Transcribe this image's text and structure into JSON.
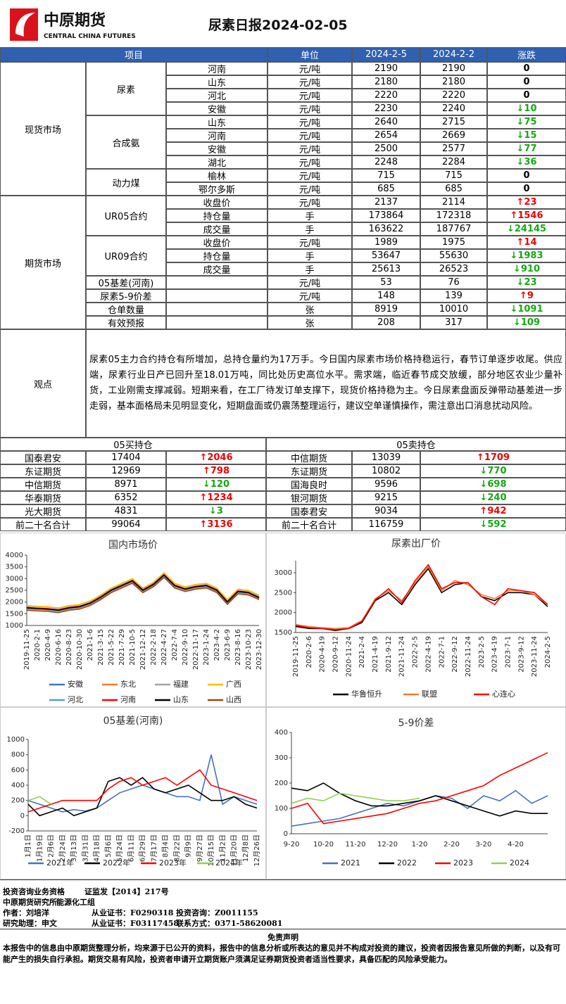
{
  "header": {
    "logo_cn": "中原期货",
    "logo_en": "CENTRAL CHINA FUTURES",
    "title": "尿素日报2024-02-05"
  },
  "table": {
    "columns": [
      "项目",
      "单位",
      "2024-2-5",
      "2024-2-2",
      "涨跌"
    ],
    "sections": [
      {
        "name": "现货市场",
        "groups": [
          {
            "name": "尿素",
            "rows": [
              [
                "河南",
                "元/吨",
                2190,
                2190,
                "0"
              ],
              [
                "山东",
                "元/吨",
                2180,
                2180,
                "0"
              ],
              [
                "河北",
                "元/吨",
                2220,
                2220,
                "0"
              ],
              [
                "安徽",
                "元/吨",
                2230,
                2240,
                "↓10"
              ]
            ]
          },
          {
            "name": "合成氨",
            "rows": [
              [
                "山东",
                "元/吨",
                2640,
                2715,
                "↓75"
              ],
              [
                "河南",
                "元/吨",
                2654,
                2669,
                "↓15"
              ],
              [
                "安徽",
                "元/吨",
                2500,
                2577,
                "↓77"
              ],
              [
                "湖北",
                "元/吨",
                2248,
                2284,
                "↓36"
              ]
            ]
          },
          {
            "name": "动力煤",
            "rows": [
              [
                "榆林",
                "元/吨",
                715,
                715,
                "0"
              ],
              [
                "鄂尔多斯",
                "元/吨",
                685,
                685,
                "0"
              ]
            ]
          }
        ]
      },
      {
        "name": "期货市场",
        "groups": [
          {
            "name": "UR05合约",
            "rows": [
              [
                "收盘价",
                "元/吨",
                2137,
                2114,
                "↑23"
              ],
              [
                "持仓量",
                "手",
                173864,
                172318,
                "↑1546"
              ],
              [
                "成交量",
                "手",
                163622,
                187767,
                "↓24145"
              ]
            ]
          },
          {
            "name": "UR09合约",
            "rows": [
              [
                "收盘价",
                "元/吨",
                1989,
                1975,
                "↑14"
              ],
              [
                "持仓量",
                "手",
                53647,
                55630,
                "↓1983"
              ],
              [
                "成交量",
                "手",
                25613,
                26523,
                "↓910"
              ]
            ]
          },
          {
            "name": "05基差(河南)",
            "rows": [
              [
                "元/吨",
                53,
                76,
                "↓23"
              ]
            ]
          },
          {
            "name": "尿素5-9价差",
            "rows": [
              [
                "元/吨",
                148,
                139,
                "↑9"
              ]
            ]
          },
          {
            "name": "仓单数量",
            "rows": [
              [
                "张",
                8919,
                10010,
                "↓1091"
              ]
            ]
          },
          {
            "name": "有效预报",
            "rows": [
              [
                "张",
                208,
                317,
                "↓109"
              ]
            ]
          }
        ]
      }
    ]
  },
  "view": {
    "label": "观点",
    "text": "尿素05主力合约持仓有所增加，总持仓量约为17万手。今日国内尿素市场价格持稳运行，春节订单逐步收尾。供应端，尿素行业日产已回升至18.01万吨，同比处历史高位水平。需求端，临近春节成交放缓，部分地区农业少量补货，工业刚需支撑减弱。短期来看，在工厂待发订单支撑下，现货价格持稳为主。今日尿素盘面反弹带动基差进一步走弱，基本面格局未见明显变化，短期盘面或仍震荡整理运行，建议空单谨慎操作，需注意出口消息扰动风险。"
  },
  "positions": {
    "buy_title": "05买持仓",
    "sell_title": "05卖持仓",
    "buy": [
      [
        "国泰君安",
        17404,
        "↑2046"
      ],
      [
        "东证期货",
        12969,
        "↑798"
      ],
      [
        "中信期货",
        8971,
        "↓120"
      ],
      [
        "华泰期货",
        6352,
        "↑1234"
      ],
      [
        "光大期货",
        4831,
        "↓3"
      ],
      [
        "前二十名合计",
        99064,
        "↑3136"
      ]
    ],
    "sell": [
      [
        "中信期货",
        13039,
        "↑1709"
      ],
      [
        "东证期货",
        10802,
        "↓770"
      ],
      [
        "国海良时",
        9596,
        "↓698"
      ],
      [
        "银河期货",
        9215,
        "↓240"
      ],
      [
        "国泰君安",
        9034,
        "↑942"
      ],
      [
        "前二十名合计",
        116759,
        "↓592"
      ]
    ]
  },
  "chart_data": [
    {
      "type": "line",
      "title": "国内市场价",
      "categories": [
        "2019-11-25",
        "2020-2-1",
        "2020-4-9",
        "2020-6-16",
        "2020-8-23",
        "2020-10-30",
        "2021-1-6",
        "2021-3-15",
        "2021-5-22",
        "2021-7-29",
        "2021-10-5",
        "2021-12-12",
        "2022-2-18",
        "2022-4-27",
        "2022-7-4",
        "2022-9-10",
        "2022-11-17",
        "2023-1-24",
        "2023-4-2",
        "2023-6-9",
        "2023-8-16",
        "2023-10-23",
        "2023-12-30"
      ],
      "ylim": [
        1000,
        4000
      ],
      "yticks": [
        1000,
        1500,
        2000,
        2500,
        3000,
        3500,
        4000
      ],
      "series": [
        {
          "name": "安徽",
          "color": "#4472c4",
          "values": [
            1750,
            1720,
            1700,
            1660,
            1760,
            1810,
            1960,
            2220,
            2520,
            2720,
            2920,
            2520,
            2760,
            3160,
            2720,
            2560,
            2660,
            2720,
            2520,
            2020,
            2460,
            2410,
            2220
          ]
        },
        {
          "name": "东北",
          "color": "#ed7d31",
          "values": [
            1700,
            1680,
            1650,
            1600,
            1700,
            1750,
            1900,
            2150,
            2450,
            2650,
            2850,
            2450,
            2700,
            3100,
            2650,
            2500,
            2600,
            2650,
            2450,
            1950,
            2400,
            2350,
            2150
          ]
        },
        {
          "name": "福建",
          "color": "#a5a5a5",
          "values": [
            1820,
            1800,
            1780,
            1730,
            1830,
            1880,
            2030,
            2280,
            2580,
            2780,
            2980,
            2580,
            2830,
            3230,
            2780,
            2630,
            2730,
            2780,
            2580,
            2080,
            2530,
            2480,
            2280
          ]
        },
        {
          "name": "广西",
          "color": "#ffc000",
          "values": [
            1850,
            1820,
            1800,
            1750,
            1850,
            1900,
            2050,
            2300,
            2600,
            2800,
            3000,
            2600,
            2850,
            3250,
            2800,
            2650,
            2750,
            2800,
            2600,
            2100,
            2550,
            2500,
            2300
          ]
        },
        {
          "name": "河北",
          "color": "#5b9bd5",
          "values": [
            1720,
            1690,
            1670,
            1620,
            1720,
            1770,
            1920,
            2170,
            2470,
            2670,
            2870,
            2470,
            2720,
            3120,
            2670,
            2520,
            2620,
            2670,
            2470,
            1970,
            2420,
            2370,
            2170
          ]
        },
        {
          "name": "河南",
          "color": "#ff0000",
          "values": [
            1770,
            1740,
            1720,
            1670,
            1770,
            1820,
            1970,
            2220,
            2520,
            2720,
            2920,
            2520,
            2770,
            3170,
            2720,
            2570,
            2670,
            2720,
            2520,
            2020,
            2470,
            2420,
            2190
          ]
        },
        {
          "name": "山东",
          "color": "#000000",
          "values": [
            1750,
            1720,
            1700,
            1650,
            1750,
            1800,
            1950,
            2200,
            2500,
            2700,
            2900,
            2500,
            2750,
            3150,
            2700,
            2550,
            2650,
            2700,
            2500,
            2000,
            2450,
            2400,
            2180
          ]
        },
        {
          "name": "山西",
          "color": "#9e480e",
          "values": [
            1650,
            1620,
            1600,
            1550,
            1650,
            1700,
            1850,
            2100,
            2400,
            2600,
            2800,
            2400,
            2650,
            3050,
            2600,
            2450,
            2550,
            2600,
            2400,
            1900,
            2350,
            2300,
            2100
          ]
        }
      ]
    },
    {
      "type": "line",
      "title": "尿素出厂价",
      "categories": [
        "2019-11-25",
        "2020-2-6",
        "2020-4-19",
        "2020-9-12",
        "2020-11-24",
        "2021-2-4",
        "2021-4-19",
        "2021-9-12",
        "2021-11-24",
        "2022-2-5",
        "2022-4-19",
        "2022-7-1",
        "2022-9-12",
        "2022-11-24",
        "2023-2-5",
        "2023-4-19",
        "2023-7-1",
        "2023-9-12",
        "2023-11-24",
        "2024-2-5"
      ],
      "ylim": [
        1500,
        3300
      ],
      "yticks": [
        1500,
        2000,
        2500,
        3000
      ],
      "series": [
        {
          "name": "华鲁恒升",
          "color": "#000000",
          "values": [
            1650,
            1600,
            1600,
            1550,
            1600,
            1750,
            2300,
            2500,
            2200,
            2700,
            3100,
            2500,
            2700,
            2750,
            2400,
            2300,
            2500,
            2500,
            2450,
            2150
          ]
        },
        {
          "name": "联盟",
          "color": "#ed7d31",
          "values": [
            1700,
            1650,
            1620,
            1600,
            1620,
            1800,
            2350,
            2550,
            2300,
            2750,
            3150,
            2550,
            2800,
            2700,
            2450,
            2350,
            2550,
            2550,
            2450,
            2200
          ]
        },
        {
          "name": "心连心",
          "color": "#ff0000",
          "values": [
            1680,
            1620,
            1600,
            1570,
            1600,
            1780,
            2320,
            2600,
            2250,
            2800,
            3200,
            2600,
            2750,
            2750,
            2400,
            2200,
            2600,
            2550,
            2500,
            2200
          ]
        }
      ]
    },
    {
      "type": "line",
      "title": "05基差(河南)",
      "categories": [
        "1月1日",
        "1月19日",
        "2月6日",
        "2月24日",
        "3月13日",
        "3月31日",
        "4月18日",
        "5月6日",
        "5月24日",
        "6月11日",
        "6月29日",
        "7月17日",
        "8月4日",
        "8月22日",
        "9月9日",
        "9月27日",
        "10月15日",
        "11月2日",
        "11月20日",
        "12月8日",
        "12月26日"
      ],
      "ylim": [
        -200,
        1000
      ],
      "yticks": [
        -200,
        0,
        200,
        400,
        600,
        800,
        1000
      ],
      "series": [
        {
          "name": "2021年",
          "color": "#4472c4",
          "values": [
            200,
            150,
            100,
            50,
            80,
            60,
            100,
            200,
            300,
            350,
            400,
            350,
            300,
            250,
            250,
            200,
            800,
            150,
            250,
            200,
            150
          ]
        },
        {
          "name": "2022年",
          "color": "#000000",
          "values": [
            150,
            0,
            50,
            100,
            0,
            50,
            100,
            450,
            500,
            400,
            500,
            350,
            300,
            350,
            400,
            300,
            200,
            200,
            250,
            150,
            100
          ]
        },
        {
          "name": "2023年",
          "color": "#ff0000",
          "values": [
            50,
            100,
            150,
            200,
            200,
            200,
            200,
            350,
            450,
            500,
            400,
            450,
            500,
            400,
            500,
            600,
            400,
            350,
            300,
            250,
            200
          ]
        },
        {
          "name": "2024年",
          "color": "#92d050",
          "values": [
            200,
            250,
            150,
            null,
            null,
            null,
            null,
            null,
            null,
            null,
            null,
            null,
            null,
            null,
            null,
            null,
            null,
            null,
            null,
            null,
            null
          ]
        }
      ]
    },
    {
      "type": "line",
      "title": "5-9价差",
      "categories": [
        "9-20",
        null,
        "10-20",
        null,
        "11-20",
        null,
        "12-20",
        null,
        "1-20",
        null,
        "2-20",
        null,
        "3-20",
        null,
        "4-20",
        null,
        null
      ],
      "ylim": [
        0,
        400
      ],
      "yticks": [
        0,
        100,
        200,
        300,
        400
      ],
      "series": [
        {
          "name": "2021",
          "color": "#4472c4",
          "values": [
            30,
            40,
            50,
            60,
            80,
            100,
            120,
            110,
            130,
            150,
            140,
            100,
            150,
            130,
            170,
            120,
            150
          ]
        },
        {
          "name": "2022",
          "color": "#000000",
          "values": [
            180,
            170,
            200,
            160,
            130,
            110,
            110,
            120,
            130,
            150,
            130,
            110,
            90,
            70,
            90,
            80,
            80
          ]
        },
        {
          "name": "2023",
          "color": "#ff0000",
          "values": [
            100,
            120,
            40,
            50,
            60,
            70,
            80,
            100,
            120,
            130,
            150,
            170,
            190,
            230,
            260,
            290,
            320
          ]
        },
        {
          "name": "2024",
          "color": "#92d050",
          "values": [
            120,
            140,
            130,
            160,
            150,
            140,
            130,
            130,
            140,
            null,
            null,
            null,
            null,
            null,
            null,
            null,
            null
          ]
        }
      ]
    }
  ],
  "footer": {
    "lines": [
      [
        "投资咨询业务资格",
        "证监发【2014】217号"
      ],
      [
        "中原期货研究所",
        "能源化工组"
      ],
      [
        "作者：刘培洋",
        "从业证书：F0290318",
        "投资咨询：Z0011155"
      ],
      [
        "研究助理：申文",
        "从业证书：F03117458",
        "联系方式：0371-58620081"
      ]
    ],
    "disclaimer_title": "免责声明",
    "disclaimer": "本报告中的信息由中原期货整理分析，均来源于已公开的资料，报告中的信息分析或所表达的意见并不构成对投资的建议，投资者因报告意见所做的判断，以及有可能产生的损失自行承担。期货交易有风险，投资者申请开立期货账户须满足证券期货投资者适当性要求，具备匹配的风险承受能力。"
  }
}
